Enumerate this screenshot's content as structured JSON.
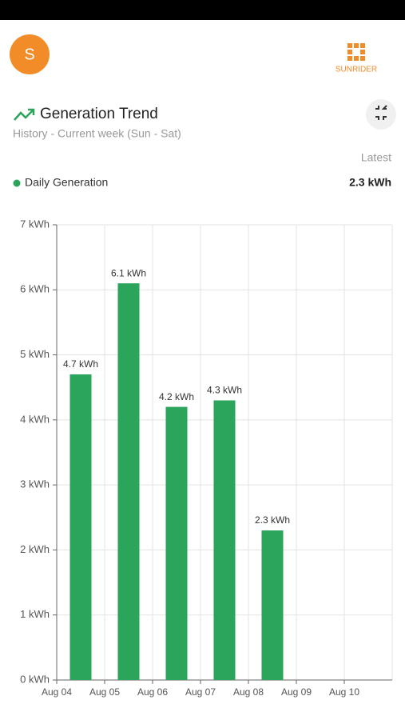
{
  "header": {
    "avatar": "S",
    "logo": "SUNRIDER"
  },
  "card": {
    "title": "Generation Trend",
    "subtitle": "History - Current week (Sun - Sat)",
    "latest_label": "Latest",
    "latest_value": "2.3 kWh"
  },
  "chart_data": {
    "type": "bar",
    "categories": [
      "Aug 04",
      "Aug 05",
      "Aug 06",
      "Aug 07",
      "Aug 08",
      "Aug 09",
      "Aug 10"
    ],
    "series": [
      {
        "name": "Daily Generation",
        "color": "#2aa55b",
        "values": [
          4.7,
          6.1,
          4.2,
          4.3,
          2.3,
          null,
          null
        ],
        "value_labels": [
          "4.7 kWh",
          "6.1 kWh",
          "4.2 kWh",
          "4.3 kWh",
          "2.3 kWh",
          null,
          null
        ]
      }
    ],
    "ylim": [
      0,
      7
    ],
    "yticks": [
      {
        "value": 0,
        "label": "0 kWh"
      },
      {
        "value": 1,
        "label": "1 kWh"
      },
      {
        "value": 2,
        "label": "2 kWh"
      },
      {
        "value": 3,
        "label": "3 kWh"
      },
      {
        "value": 4,
        "label": "4 kWh"
      },
      {
        "value": 5,
        "label": "5 kWh"
      },
      {
        "value": 6,
        "label": "6 kWh"
      },
      {
        "value": 7,
        "label": "7 kWh"
      }
    ],
    "grid": true
  }
}
